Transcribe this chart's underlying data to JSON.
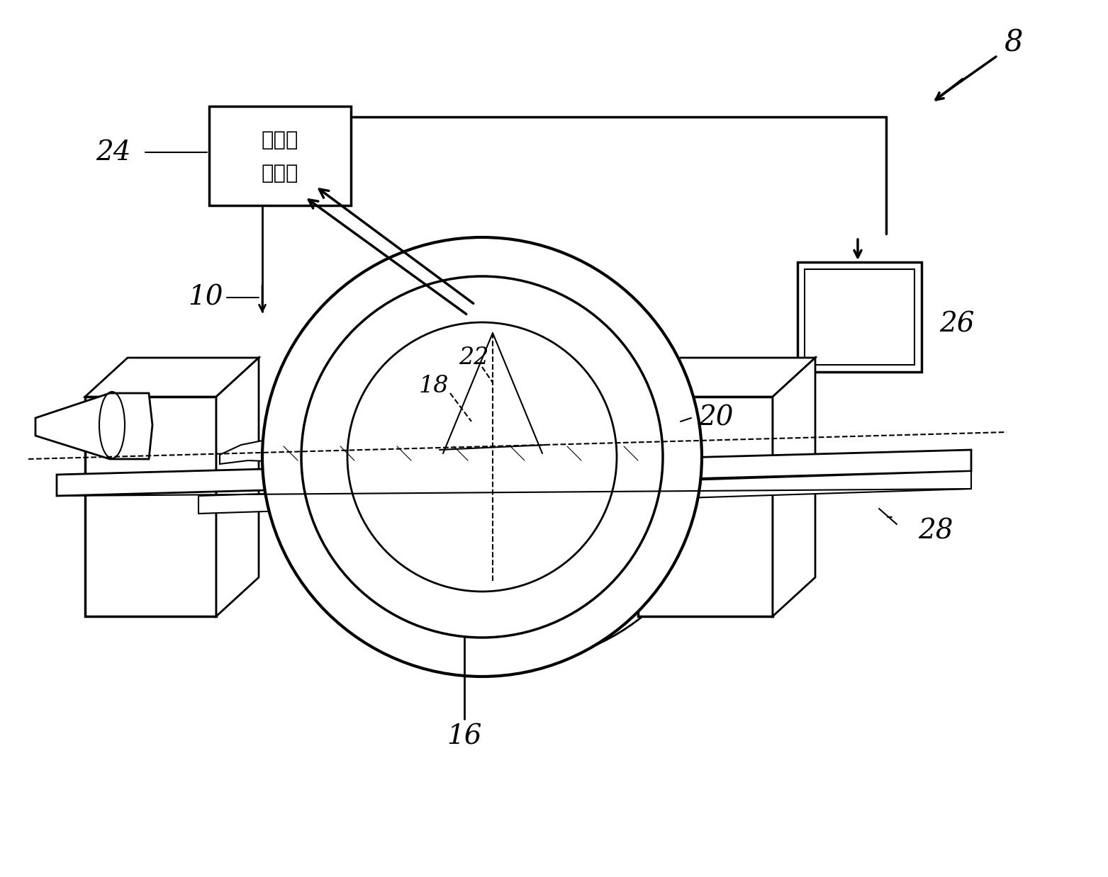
{
  "bg_color": "#ffffff",
  "line_color": "#000000",
  "fig_width": 15.63,
  "fig_height": 12.38,
  "label_8": "8",
  "label_24": "24",
  "label_10": "10",
  "label_16": "16",
  "label_18": "18",
  "label_20": "20",
  "label_22": "22",
  "label_26": "26",
  "label_28": "28",
  "computer_text_line1": "计算机",
  "computer_text_line2": "子系统"
}
